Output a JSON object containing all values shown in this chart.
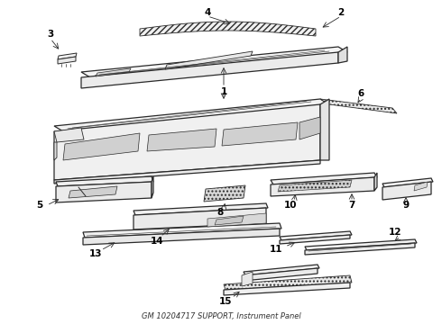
{
  "title": "GM 10204717 SUPPORT, Instrument Panel",
  "background_color": "#ffffff",
  "line_color": "#2a2a2a",
  "label_color": "#000000",
  "fig_width": 4.9,
  "fig_height": 3.6,
  "dpi": 100,
  "lw_main": 0.9,
  "lw_thin": 0.5,
  "lw_label": 0.55,
  "part_fill": "#f8f8f8",
  "hatch_fill": "#eeeeee",
  "label_fs": 7.5
}
